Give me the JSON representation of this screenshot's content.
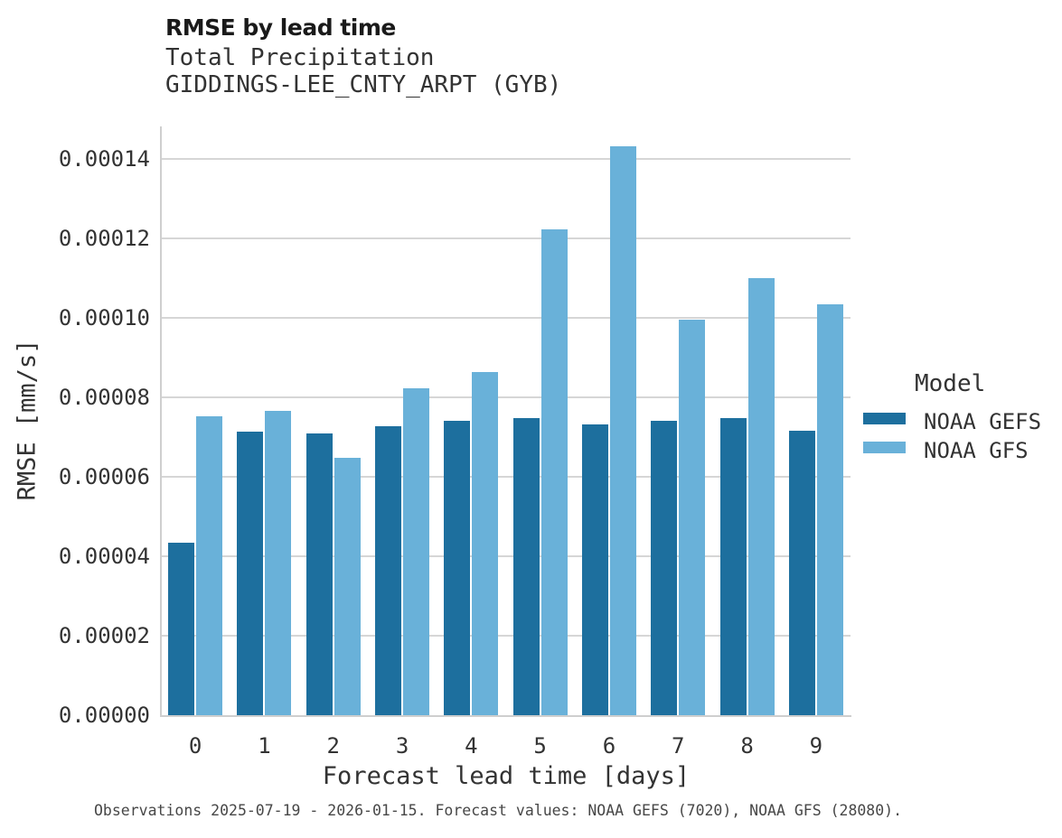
{
  "title": "RMSE by lead time",
  "subtitle_variable": "Total Precipitation",
  "subtitle_station": "GIDDINGS-LEE_CNTY_ARPT (GYB)",
  "footer": "Observations 2025-07-19 - 2026-01-15. Forecast values: NOAA GEFS (7020), NOAA GFS (28080).",
  "legend": {
    "title": "Model",
    "items": [
      {
        "label": "NOAA GEFS",
        "color": "#1d6f9e"
      },
      {
        "label": "NOAA GFS",
        "color": "#69b1d9"
      }
    ]
  },
  "chart_data": {
    "type": "bar",
    "title": "RMSE by lead time",
    "subtitle": [
      "Total Precipitation",
      "GIDDINGS-LEE_CNTY_ARPT (GYB)"
    ],
    "xlabel": "Forecast lead time [days]",
    "ylabel": "RMSE [mm/s]",
    "categories": [
      "0",
      "1",
      "2",
      "3",
      "4",
      "5",
      "6",
      "7",
      "8",
      "9"
    ],
    "series": [
      {
        "name": "NOAA GEFS",
        "color": "#1d6f9e",
        "values": [
          4.35e-05,
          7.13e-05,
          7.1e-05,
          7.27e-05,
          7.41e-05,
          7.48e-05,
          7.31e-05,
          7.42e-05,
          7.47e-05,
          7.16e-05
        ]
      },
      {
        "name": "NOAA GFS",
        "color": "#69b1d9",
        "values": [
          7.53e-05,
          7.67e-05,
          6.48e-05,
          8.23e-05,
          8.64e-05,
          0.0001223,
          0.0001432,
          9.96e-05,
          0.00011,
          0.0001034
        ]
      }
    ],
    "ylim": [
      0,
      0.00014
    ],
    "ytick_step": 2e-05,
    "ytick_labels": [
      "0.00000",
      "0.00002",
      "0.00004",
      "0.00006",
      "0.00008",
      "0.00010",
      "0.00012",
      "0.00014"
    ],
    "grid": true,
    "legend_title": "Model",
    "legend_position": "right",
    "annotation": "Observations 2025-07-19 - 2026-01-15. Forecast values: NOAA GEFS (7020), NOAA GFS (28080)."
  }
}
